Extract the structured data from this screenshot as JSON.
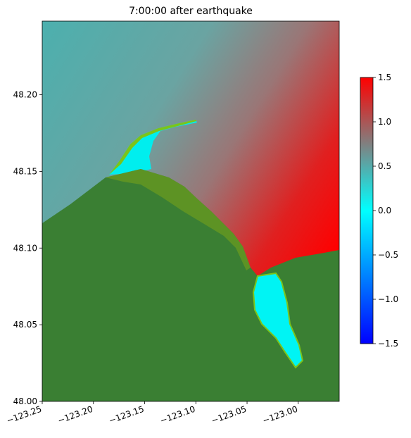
{
  "chart_data": {
    "type": "heatmap",
    "title": "7:00:00 after earthquake",
    "xlim": [
      -123.25,
      -122.96
    ],
    "ylim": [
      48.0,
      48.248
    ],
    "xticks": [
      {
        "value": -123.25,
        "label": "−123.25"
      },
      {
        "value": -123.2,
        "label": "−123.20"
      },
      {
        "value": -123.15,
        "label": "−123.15"
      },
      {
        "value": -123.1,
        "label": "−123.10"
      },
      {
        "value": -123.05,
        "label": "−123.05"
      },
      {
        "value": -123.0,
        "label": "−123.00"
      }
    ],
    "yticks": [
      {
        "value": 48.0,
        "label": "48.00"
      },
      {
        "value": 48.05,
        "label": "48.05"
      },
      {
        "value": 48.1,
        "label": "48.10"
      },
      {
        "value": 48.15,
        "label": "48.15"
      },
      {
        "value": 48.2,
        "label": "48.20"
      }
    ],
    "clim": [
      -1.5,
      1.5
    ],
    "cticks": [
      {
        "value": 1.5,
        "label": "1.5"
      },
      {
        "value": 1.0,
        "label": "1.0"
      },
      {
        "value": 0.5,
        "label": "0.5"
      },
      {
        "value": 0.0,
        "label": "0.0"
      },
      {
        "value": -0.5,
        "label": "−0.5"
      },
      {
        "value": -1.0,
        "label": "−1.0"
      },
      {
        "value": -1.5,
        "label": "−1.5"
      }
    ],
    "colormap": [
      "#0000ff",
      "#0080ff",
      "#00ffff",
      "#808080",
      "#ff0000"
    ]
  }
}
